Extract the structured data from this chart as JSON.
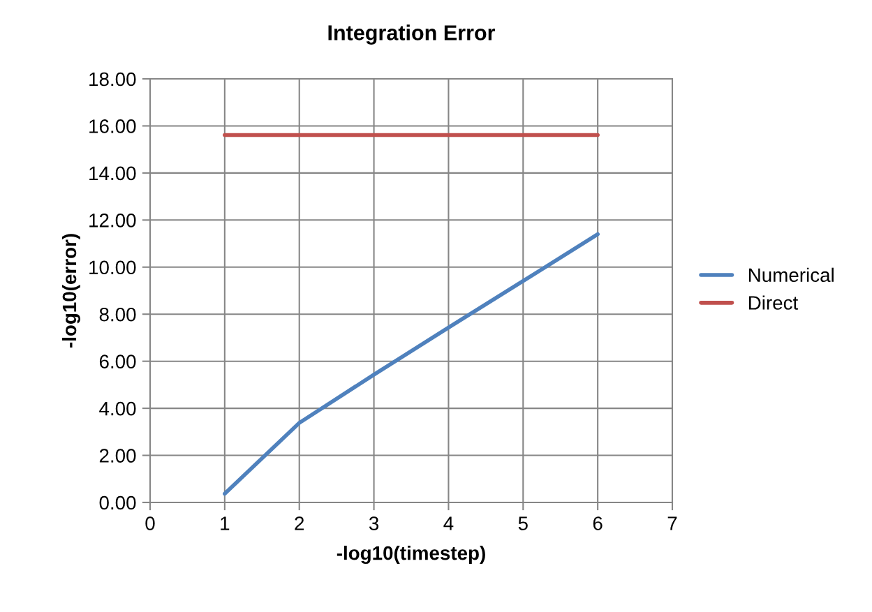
{
  "chart_data": {
    "type": "line",
    "title": "Integration Error",
    "xlabel": "-log10(timestep)",
    "ylabel": "-log10(error)",
    "x": [
      1,
      2,
      3,
      4,
      5,
      6
    ],
    "series": [
      {
        "name": "Numerical",
        "color": "#4f81bd",
        "values": [
          0.37,
          3.38,
          5.43,
          7.43,
          9.41,
          11.4
        ]
      },
      {
        "name": "Direct",
        "color": "#c0504d",
        "values": [
          15.61,
          15.61,
          15.61,
          15.61,
          15.61,
          15.61
        ]
      }
    ],
    "xlim": [
      0,
      7
    ],
    "xticks": [
      0,
      1,
      2,
      3,
      4,
      5,
      6,
      7
    ],
    "ylim": [
      0,
      18
    ],
    "yticks": [
      {
        "value": 0,
        "label": "0.00"
      },
      {
        "value": 2,
        "label": "2.00"
      },
      {
        "value": 4,
        "label": "4.00"
      },
      {
        "value": 6,
        "label": "6.00"
      },
      {
        "value": 8,
        "label": "8.00"
      },
      {
        "value": 10,
        "label": "10.00"
      },
      {
        "value": 12,
        "label": "12.00"
      },
      {
        "value": 14,
        "label": "14.00"
      },
      {
        "value": 16,
        "label": "16.00"
      },
      {
        "value": 18,
        "label": "18.00"
      }
    ],
    "grid": true,
    "legend": "right",
    "marker": "none",
    "line_style": "solid"
  }
}
